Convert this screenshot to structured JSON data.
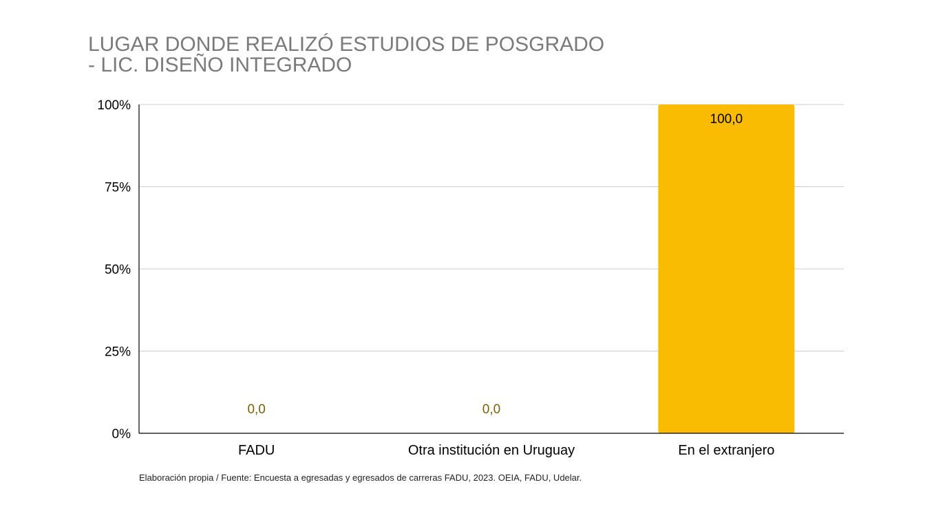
{
  "chart_data": {
    "type": "bar",
    "title_lines": [
      "LUGAR DONDE REALIZÓ ESTUDIOS DE POSGRADO",
      "- LIC. DISEÑO INTEGRADO"
    ],
    "categories": [
      "FADU",
      "Otra institución en Uruguay",
      "En el extranjero"
    ],
    "values": [
      0,
      0,
      100
    ],
    "data_labels": [
      "0,0",
      "0,0",
      "100,0"
    ],
    "y_ticks": [
      0,
      25,
      50,
      75,
      100
    ],
    "y_tick_labels": [
      "0%",
      "25%",
      "50%",
      "75%",
      "100%"
    ],
    "ylim": [
      0,
      100
    ],
    "grid": true,
    "bar_color": "#f9bc02",
    "zero_label_color": "#7f6000",
    "label_color": "#000000"
  },
  "source_note": "Elaboración propia / Fuente: Encuesta a egresadas y egresados de carreras FADU, 2023. OEIA, FADU, Udelar."
}
